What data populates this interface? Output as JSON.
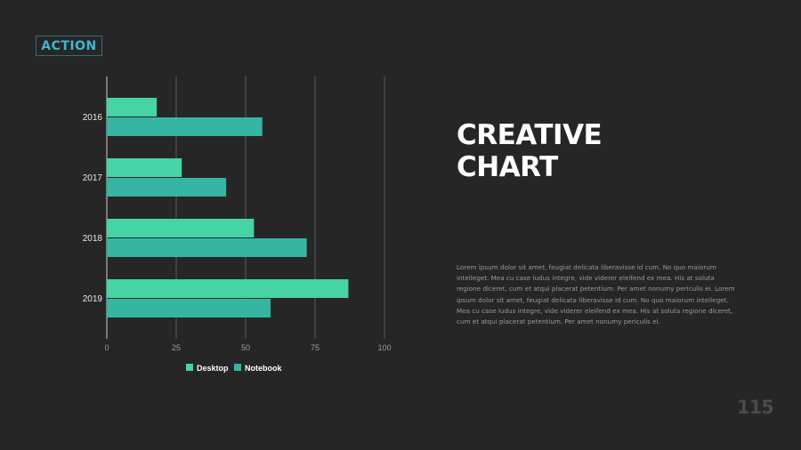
{
  "logo": {
    "text": "ACTION"
  },
  "slide": {
    "title_line1": "CREATIVE",
    "title_line2": "CHART",
    "body": "Lorem ipsum dolor sit amet, feugiat delicata liberavisse id cum. No quo maiorum intelleget. Mea cu case ludus integre, vide viderer eleifend ex mea. His at soluta regione diceret, cum et atqui placerat petentium. Per amet nonumy periculis ei. Lorem ipsum dolor sit amet, feugiat delicata liberavisse id cum. No quo maiorum intelleget. Mea cu case ludus integre, vide viderer eleifend ex mea. His at soluta regione diceret, cum et atqui placerat petentium. Per amet nonumy periculis ei.",
    "page_number": "115"
  },
  "chart_data": {
    "type": "bar",
    "orientation": "horizontal",
    "categories": [
      "2016",
      "2017",
      "2018",
      "2019"
    ],
    "series": [
      {
        "name": "Desktop",
        "values": [
          18,
          27,
          53,
          87
        ],
        "color": "#46d3a6"
      },
      {
        "name": "Notebook",
        "values": [
          56,
          43,
          72,
          59
        ],
        "color": "#35b5a2"
      }
    ],
    "xlim": [
      0,
      100
    ],
    "xticks": [
      "0",
      "25",
      "50",
      "75",
      "100"
    ],
    "grid": true,
    "legend_position": "bottom"
  }
}
